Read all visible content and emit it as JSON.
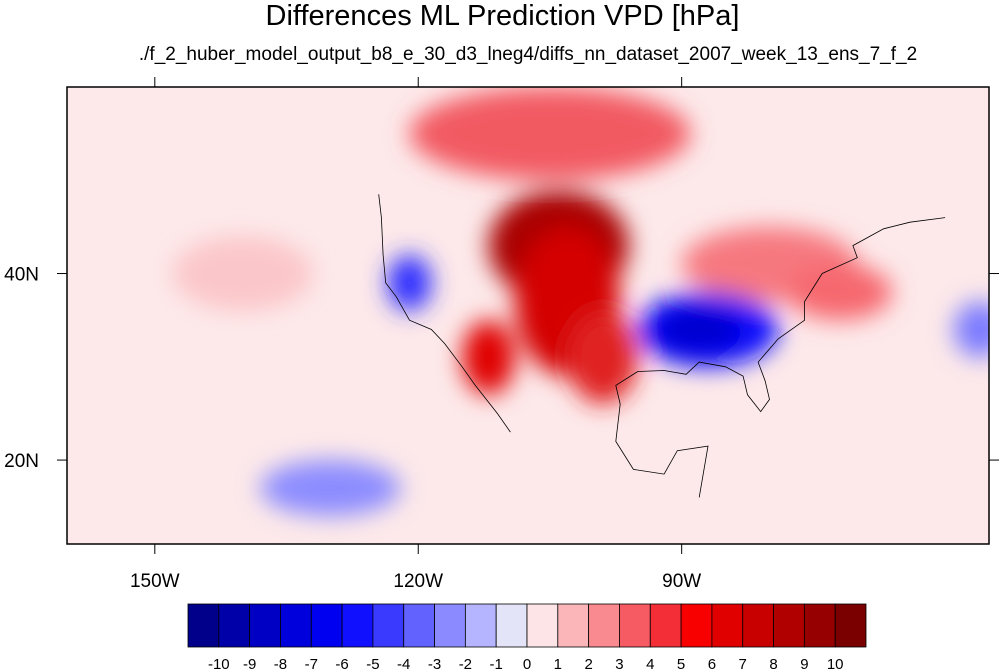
{
  "title": "Differences ML Prediction VPD [hPa]",
  "subtitle": "./f_2_huber_model_output_b8_e_30_d3_lneg4/diffs_nn_dataset_2007_week_13_ens_7_f_2",
  "map": {
    "lon_range": [
      -160,
      -55
    ],
    "lat_range": [
      11,
      60
    ],
    "lon_ticks": [
      {
        "value": -150,
        "label": "150W"
      },
      {
        "value": -120,
        "label": "120W"
      },
      {
        "value": -90,
        "label": "90W"
      }
    ],
    "lat_ticks": [
      {
        "value": 40,
        "label": "40N"
      },
      {
        "value": 20,
        "label": "20N"
      }
    ],
    "background_color": "#fde9ea"
  },
  "colorbar": {
    "labels": [
      "-10",
      "-9",
      "-8",
      "-7",
      "-6",
      "-5",
      "-4",
      "-3",
      "-2",
      "-1",
      "0",
      "1",
      "2",
      "3",
      "4",
      "5",
      "6",
      "7",
      "8",
      "9",
      "10"
    ],
    "colors": [
      "#00008a",
      "#0000a8",
      "#0000c4",
      "#0000dc",
      "#0000f0",
      "#1010ff",
      "#3a3aff",
      "#6262ff",
      "#8b8bff",
      "#b4b4ff",
      "#e4e4f8",
      "#fde4e6",
      "#fbb6ba",
      "#f98a90",
      "#f65a62",
      "#f42e36",
      "#f80000",
      "#e00000",
      "#c80000",
      "#b00000",
      "#960000",
      "#7a0000"
    ]
  },
  "features": [
    {
      "name": "north-plains-warm",
      "color": "#a90000",
      "lon": -104,
      "lat": 43,
      "rlon": 8,
      "rlat": 6
    },
    {
      "name": "plains-warm",
      "color": "#d40000",
      "lon": -103,
      "lat": 37,
      "rlon": 6,
      "rlat": 8
    },
    {
      "name": "texas-warm",
      "color": "#e02020",
      "lon": -99,
      "lat": 31,
      "rlon": 4,
      "rlat": 5
    },
    {
      "name": "mexico-warm",
      "color": "#e00000",
      "lon": -112,
      "lat": 31,
      "rlon": 3,
      "rlat": 4
    },
    {
      "name": "canada-warm",
      "color": "#f25a62",
      "lon": -105,
      "lat": 55,
      "rlon": 16,
      "rlat": 5
    },
    {
      "name": "northeast-warm",
      "color": "#f6787f",
      "lon": -80,
      "lat": 41,
      "rlon": 10,
      "rlat": 4
    },
    {
      "name": "atlantic-warm",
      "color": "#f6676e",
      "lon": -72,
      "lat": 38,
      "rlon": 6,
      "rlat": 3
    },
    {
      "name": "southeast-cool",
      "color": "#1010ff",
      "lon": -87,
      "lat": 34,
      "rlon": 8,
      "rlat": 4
    },
    {
      "name": "southeast-cool-core",
      "color": "#0000d0",
      "lon": -88,
      "lat": 34,
      "rlon": 5,
      "rlat": 2.5
    },
    {
      "name": "california-cool",
      "color": "#2e2eff",
      "lon": -121,
      "lat": 39,
      "rlon": 2.5,
      "rlat": 3
    },
    {
      "name": "pacific-cool",
      "color": "#8c8cff",
      "lon": -130,
      "lat": 17,
      "rlon": 8,
      "rlat": 3
    },
    {
      "name": "pacific-warm",
      "color": "#fbc6c9",
      "lon": -140,
      "lat": 40,
      "rlon": 8,
      "rlat": 4
    },
    {
      "name": "bermuda-cool",
      "color": "#7a7aff",
      "lon": -56,
      "lat": 34,
      "rlon": 3,
      "rlat": 3
    }
  ],
  "coastlines": [
    {
      "name": "west-coast",
      "points": [
        [
          -124.5,
          48.5
        ],
        [
          -124.2,
          46
        ],
        [
          -124,
          42
        ],
        [
          -123.7,
          39
        ],
        [
          -122.5,
          37.5
        ],
        [
          -121,
          35
        ],
        [
          -118.5,
          34
        ],
        [
          -117,
          32.5
        ],
        [
          -115,
          30
        ],
        [
          -113.5,
          28
        ],
        [
          -111,
          25
        ],
        [
          -109.5,
          23
        ]
      ]
    },
    {
      "name": "gulf-coast",
      "points": [
        [
          -97,
          26
        ],
        [
          -97.5,
          28
        ],
        [
          -95,
          29.5
        ],
        [
          -92,
          29.6
        ],
        [
          -89.5,
          29.2
        ],
        [
          -88,
          30.5
        ],
        [
          -85,
          30
        ],
        [
          -83,
          29
        ],
        [
          -82.5,
          27
        ],
        [
          -81,
          25.2
        ],
        [
          -80,
          26.5
        ],
        [
          -80.5,
          28.5
        ],
        [
          -81.3,
          30.5
        ]
      ]
    },
    {
      "name": "east-coast",
      "points": [
        [
          -81.3,
          30.5
        ],
        [
          -79,
          33
        ],
        [
          -76,
          35
        ],
        [
          -76,
          37
        ],
        [
          -74,
          40
        ],
        [
          -70,
          41.7
        ],
        [
          -70.5,
          43
        ],
        [
          -67,
          44.8
        ],
        [
          -64,
          45.5
        ],
        [
          -60,
          46
        ]
      ]
    },
    {
      "name": "mexico-coast",
      "points": [
        [
          -97,
          26
        ],
        [
          -97.5,
          22
        ],
        [
          -95.5,
          19
        ],
        [
          -92,
          18.5
        ],
        [
          -90.5,
          21
        ],
        [
          -87,
          21.5
        ],
        [
          -88,
          16
        ]
      ]
    }
  ]
}
